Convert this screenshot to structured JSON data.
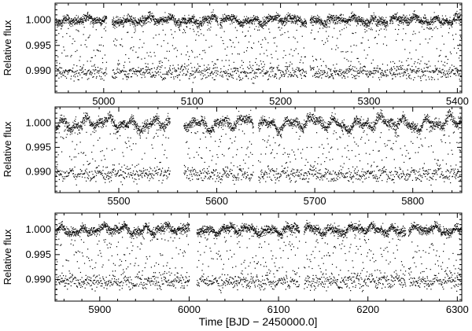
{
  "chart_data": [
    {
      "type": "scatter",
      "ylabel": "Relative flux",
      "xlabel": "",
      "xlim": [
        4945,
        5405
      ],
      "ylim": [
        0.9857,
        1.0033
      ],
      "x_ticks": [
        5000,
        5100,
        5200,
        5300,
        5400
      ],
      "y_ticks": [
        0.99,
        0.995,
        1.0
      ],
      "y_tick_labels": [
        "0.990",
        "0.995",
        "1.000"
      ],
      "gaps": [
        [
          5003,
          5009
        ],
        [
          5129,
          5131
        ],
        [
          5229,
          5233
        ],
        [
          5321,
          5323
        ]
      ],
      "series": [
        {
          "baseline": 1.0,
          "scatter": 0.00045,
          "amplitude": 0.0006,
          "low_band_level": 0.9898
        }
      ]
    },
    {
      "type": "scatter",
      "ylabel": "Relative flux",
      "xlabel": "",
      "xlim": [
        5435,
        5850
      ],
      "ylim": [
        0.9857,
        1.0033
      ],
      "x_ticks": [
        5500,
        5600,
        5700,
        5800
      ],
      "y_ticks": [
        0.99,
        0.995,
        1.0
      ],
      "y_tick_labels": [
        "0.990",
        "0.995",
        "1.000"
      ],
      "gaps": [
        [
          5552,
          5566
        ],
        [
          5637,
          5642
        ]
      ],
      "series": [
        {
          "baseline": 1.0,
          "scatter": 0.0005,
          "amplitude": 0.0013,
          "low_band_level": 0.9895
        }
      ]
    },
    {
      "type": "scatter",
      "ylabel": "Relative flux",
      "xlabel": "Time [BJD − 2450000.0]",
      "xlim": [
        5850,
        6305
      ],
      "ylim": [
        0.9857,
        1.0033
      ],
      "x_ticks": [
        5900,
        6000,
        6100,
        6200,
        6300
      ],
      "y_ticks": [
        0.99,
        0.995,
        1.0
      ],
      "y_tick_labels": [
        "0.990",
        "0.995",
        "1.000"
      ],
      "gaps": [
        [
          6000,
          6008
        ],
        [
          6123,
          6128
        ],
        [
          6242,
          6245
        ]
      ],
      "series": [
        {
          "baseline": 1.0,
          "scatter": 0.00045,
          "amplitude": 0.0008,
          "low_band_level": 0.9897
        }
      ]
    }
  ]
}
